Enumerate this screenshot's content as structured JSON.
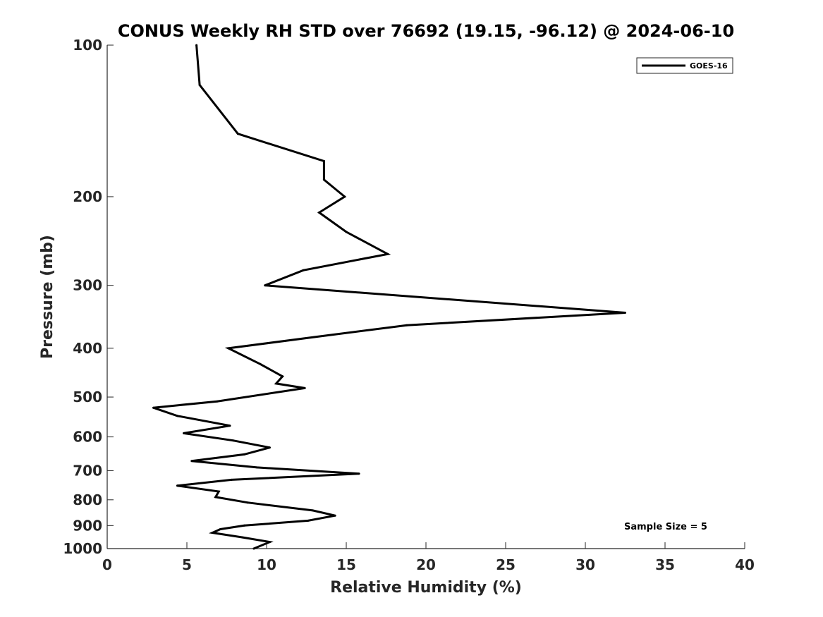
{
  "chart_data": {
    "type": "line",
    "title": "CONUS Weekly RH STD over 76692 (19.15, -96.12) @ 2024-06-10",
    "xlabel": "Relative Humidity (%)",
    "ylabel": "Pressure (mb)",
    "xlim": [
      0,
      40
    ],
    "ylim": [
      100,
      1000
    ],
    "y_scale": "log",
    "y_reversed": true,
    "x_ticks": [
      "0",
      "5",
      "10",
      "15",
      "20",
      "25",
      "30",
      "35",
      "40"
    ],
    "y_ticks": [
      "100",
      "200",
      "300",
      "400",
      "500",
      "600",
      "700",
      "800",
      "900",
      "1000"
    ],
    "grid": false,
    "legend_position": "top-right",
    "annotation": "Sample Size = 5",
    "line_color": "#000000",
    "series": [
      {
        "name": "GOES-16",
        "x": [
          5.6,
          5.8,
          8.2,
          13.6,
          13.6,
          14.9,
          13.3,
          15.0,
          17.6,
          12.3,
          9.9,
          32.5,
          18.8,
          13.0,
          7.6,
          9.6,
          11.0,
          10.6,
          12.4,
          6.9,
          2.9,
          4.4,
          7.7,
          4.8,
          7.9,
          10.2,
          8.6,
          5.3,
          9.4,
          15.8,
          7.8,
          4.4,
          7.0,
          6.8,
          8.8,
          12.9,
          14.3,
          12.6,
          8.6,
          7.1,
          6.6,
          8.5,
          10.2,
          9.2
        ],
        "y": [
          100,
          120,
          150,
          170,
          185,
          200,
          215,
          235,
          260,
          280,
          300,
          340,
          360,
          380,
          400,
          430,
          455,
          470,
          480,
          510,
          525,
          545,
          570,
          590,
          610,
          630,
          650,
          670,
          690,
          710,
          730,
          750,
          770,
          790,
          810,
          840,
          860,
          880,
          900,
          915,
          930,
          950,
          970,
          1000
        ]
      }
    ]
  }
}
